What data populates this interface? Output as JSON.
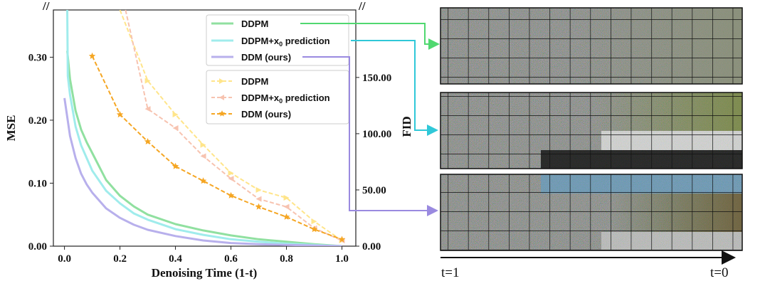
{
  "chart_data": {
    "type": "line",
    "xlabel": "Denoising Time (1-t)",
    "ylabel_left": "MSE",
    "ylabel_right": "FID",
    "xlim": [
      -0.04,
      1.05
    ],
    "ylim_left": [
      0,
      0.375
    ],
    "ylim_right": [
      0,
      210
    ],
    "xticks": [
      "0.0",
      "0.2",
      "0.4",
      "0.6",
      "0.8",
      "1.0"
    ],
    "yticks_left": [
      "0.00",
      "0.10",
      "0.20",
      "0.30"
    ],
    "yticks_right": [
      "0.00",
      "50.00",
      "100.00",
      "150.00"
    ],
    "axis_break_left": "//",
    "axis_break_right": "//",
    "legend_mse": [
      {
        "name": "DDPM",
        "color": "#90e0a0"
      },
      {
        "name": "DDPM+",
        "math": "x",
        "sub": "0",
        "name_suffix": " prediction",
        "color": "#a0ecec"
      },
      {
        "name": "DDM (ours)",
        "color": "#b8b0ec"
      }
    ],
    "legend_fid": [
      {
        "name": "DDPM",
        "color": "#ffe58a"
      },
      {
        "name": "DDPM+",
        "math": "x",
        "sub": "0",
        "name_suffix": " prediction",
        "color": "#f7c3b0"
      },
      {
        "name": "DDM (ours)",
        "color": "#f5a623"
      }
    ],
    "series_mse": [
      {
        "legend": 0,
        "x": [
          0.01,
          0.02,
          0.04,
          0.06,
          0.08,
          0.1,
          0.15,
          0.2,
          0.25,
          0.3,
          0.4,
          0.5,
          0.6,
          0.7,
          0.8,
          0.9,
          1.0
        ],
        "y": [
          0.31,
          0.265,
          0.215,
          0.185,
          0.165,
          0.148,
          0.105,
          0.08,
          0.063,
          0.05,
          0.035,
          0.025,
          0.017,
          0.011,
          0.007,
          0.003,
          0.0
        ]
      },
      {
        "legend": 1,
        "x": [
          0.01,
          0.012,
          0.02,
          0.04,
          0.06,
          0.08,
          0.1,
          0.15,
          0.2,
          0.25,
          0.3,
          0.4,
          0.5,
          0.6,
          0.7,
          0.8,
          0.9,
          1.0
        ],
        "y": [
          0.375,
          0.27,
          0.24,
          0.19,
          0.16,
          0.14,
          0.12,
          0.088,
          0.068,
          0.052,
          0.042,
          0.027,
          0.018,
          0.011,
          0.007,
          0.004,
          0.002,
          0.0
        ]
      },
      {
        "legend": 2,
        "x": [
          0.0,
          0.02,
          0.04,
          0.06,
          0.08,
          0.1,
          0.15,
          0.2,
          0.25,
          0.3,
          0.4,
          0.5,
          0.6,
          0.7,
          0.8,
          0.9,
          1.0
        ],
        "y": [
          0.235,
          0.175,
          0.14,
          0.115,
          0.098,
          0.085,
          0.06,
          0.045,
          0.034,
          0.026,
          0.016,
          0.009,
          0.005,
          0.003,
          0.002,
          0.001,
          0.0
        ]
      }
    ],
    "series_fid": [
      {
        "legend": 0,
        "x": [
          0.2,
          0.3,
          0.4,
          0.5,
          0.6,
          0.7,
          0.8,
          0.9,
          1.0
        ],
        "y": [
          210,
          147,
          117,
          90,
          65,
          50,
          43,
          22,
          5
        ]
      },
      {
        "legend": 1,
        "x": [
          0.22,
          0.3,
          0.4,
          0.5,
          0.6,
          0.7,
          0.8,
          0.9,
          1.0
        ],
        "y": [
          210,
          122,
          105,
          80,
          60,
          42,
          35,
          16,
          5
        ]
      },
      {
        "legend": 2,
        "x": [
          0.1,
          0.2,
          0.3,
          0.4,
          0.5,
          0.6,
          0.7,
          0.8,
          0.9,
          1.0
        ],
        "y": [
          169,
          117,
          93,
          71,
          58,
          45,
          35,
          26,
          15,
          6
        ]
      }
    ]
  },
  "panel": {
    "label_start": "t=1",
    "label_end": "t=0"
  }
}
